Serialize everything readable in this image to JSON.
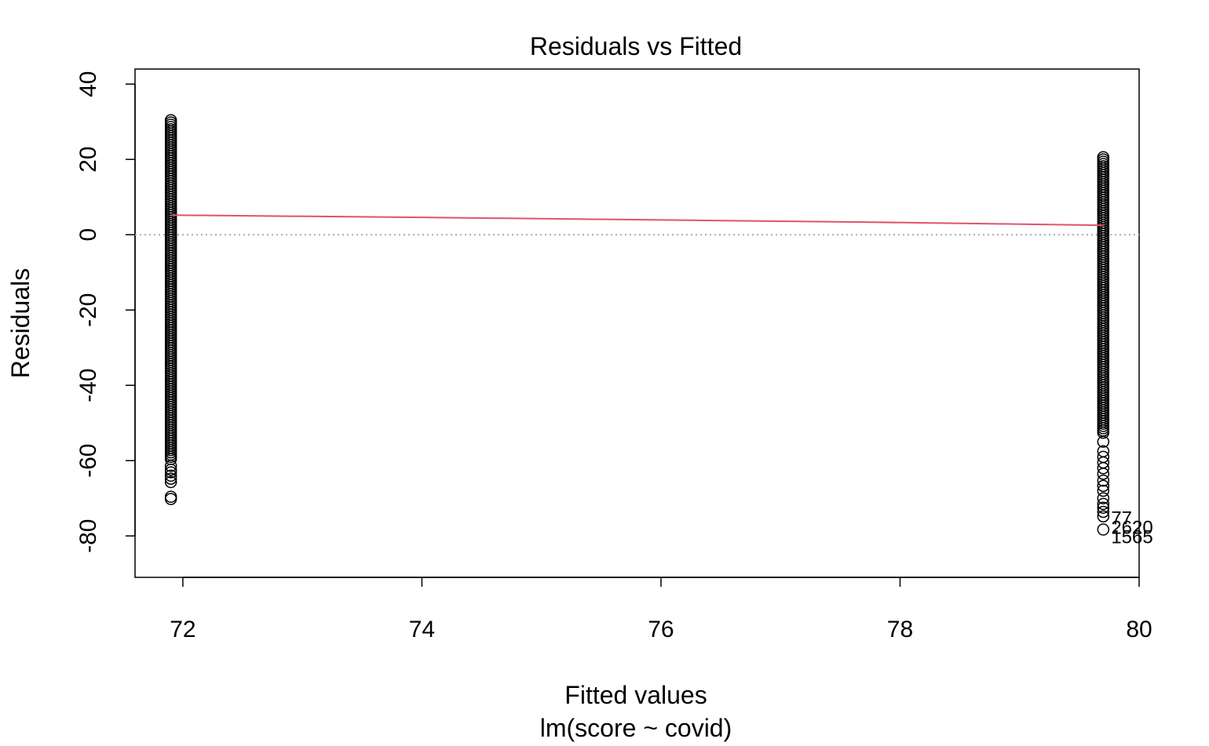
{
  "chart_data": {
    "type": "scatter",
    "title": "Residuals vs Fitted",
    "xlabel": "Fitted values",
    "xsublabel": "lm(score ~ covid)",
    "ylabel": "Residuals",
    "xlim": [
      71.6,
      80.0
    ],
    "ylim": [
      -91,
      44
    ],
    "xticks": [
      72,
      74,
      76,
      78,
      80
    ],
    "yticks": [
      -80,
      -60,
      -40,
      -20,
      0,
      20,
      40
    ],
    "xtick_labels": [
      "72",
      "74",
      "76",
      "78",
      "80"
    ],
    "ytick_labels": [
      "-80",
      "-60",
      "-40",
      "-20",
      "0",
      "20",
      "40"
    ],
    "grid": false,
    "zero_line": true,
    "groups": [
      {
        "x": 71.9,
        "residual_max": 30.4,
        "residual_min": -60.0,
        "outliers": [
          -61.4,
          -62.4,
          -63.1,
          -64.0,
          -64.8,
          -65.7,
          -69.6,
          -70.2
        ]
      },
      {
        "x": 79.7,
        "residual_max": 20.6,
        "residual_min": -53.0,
        "outliers": [
          -55.0,
          -57.5,
          -59.0,
          -60.5,
          -62.0,
          -63.5,
          -65.3,
          -66.7,
          -68.0,
          -70.0,
          -71.5,
          -72.5,
          -73.6,
          -74.8,
          -78.3
        ]
      }
    ],
    "smooth_line": {
      "color": "#df536b",
      "points": [
        [
          71.9,
          5.2
        ],
        [
          72.8,
          4.95
        ],
        [
          74.0,
          4.6
        ],
        [
          75.3,
          4.15
        ],
        [
          76.5,
          3.75
        ],
        [
          77.7,
          3.35
        ],
        [
          78.9,
          2.85
        ],
        [
          79.7,
          2.5
        ]
      ]
    },
    "annotations": [
      {
        "text": "77",
        "x": 79.7,
        "y": -75.3
      },
      {
        "text": "2620",
        "x": 79.7,
        "y": -77.8
      },
      {
        "text": "1565",
        "x": 79.7,
        "y": -80.3
      }
    ]
  }
}
